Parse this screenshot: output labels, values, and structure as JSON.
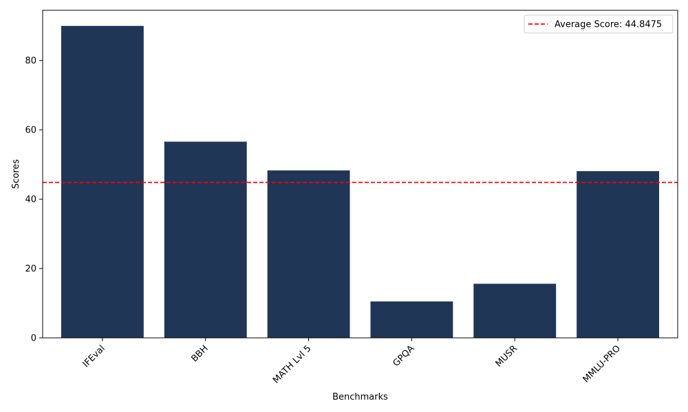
{
  "chart_data": {
    "type": "bar",
    "title": "",
    "xlabel": "Benchmarks",
    "ylabel": "Scores",
    "categories": [
      "IFEval",
      "BBH",
      "MATH Lvl 5",
      "GPQA",
      "MUSR",
      "MMLU-PRO"
    ],
    "values": [
      90.0,
      56.6,
      48.3,
      10.5,
      15.6,
      48.1
    ],
    "ylim": [
      0,
      94.5
    ],
    "yticks": [
      0,
      20,
      40,
      60,
      80
    ],
    "grid": false,
    "bar_color": "#1f3657",
    "reference_line": {
      "label": "Average Score: 44.8475",
      "value": 44.8475,
      "color": "#ff0000",
      "style": "dashed"
    },
    "legend": {
      "placement": "top-right",
      "entries": [
        "Average Score: 44.8475"
      ]
    },
    "x_tick_rotation": 45
  }
}
